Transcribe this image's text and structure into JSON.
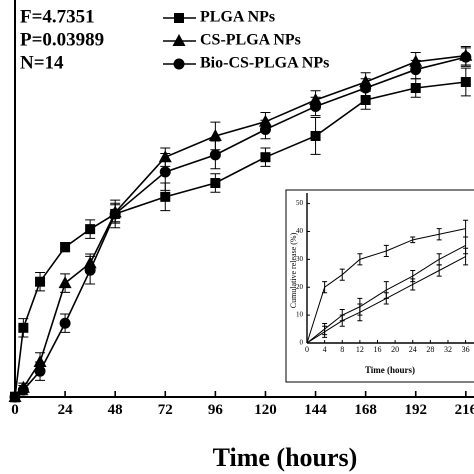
{
  "chart_data": [
    {
      "type": "line",
      "xlabel": "Time (hours)",
      "annotations": [
        "F=4.7351",
        "P=0.03989",
        "N=14"
      ],
      "xlim": [
        0,
        218
      ],
      "ylim": [
        0,
        85
      ],
      "xticks": [
        0,
        24,
        48,
        72,
        96,
        120,
        144,
        168,
        192,
        216
      ],
      "x": [
        0,
        4,
        12,
        24,
        36,
        48,
        72,
        96,
        120,
        144,
        168,
        192,
        216
      ],
      "series": [
        {
          "name": "PLGA NPs",
          "color": "#000000",
          "marker": "square",
          "values": [
            0,
            15,
            25,
            32.5,
            36.4,
            39.7,
            43.4,
            46.4,
            52,
            56.6,
            64.4,
            67,
            68.3
          ],
          "errors": [
            1,
            2,
            2,
            1,
            2,
            3,
            3,
            2,
            2,
            4,
            2,
            2,
            3
          ]
        },
        {
          "name": "CS-PLGA NPs",
          "color": "#000000",
          "marker": "triangle",
          "values": [
            0,
            2,
            7.6,
            24.7,
            29,
            40,
            52,
            56.6,
            59.7,
            64.4,
            68.3,
            72.7,
            74
          ],
          "errors": [
            1,
            1,
            2,
            2,
            2,
            2,
            2,
            3,
            2,
            2,
            2,
            2,
            2
          ]
        },
        {
          "name": "Bio-CS-PLGA NPs",
          "color": "#000000",
          "marker": "circle",
          "values": [
            0,
            1.5,
            5.6,
            16,
            27.5,
            39.7,
            48.8,
            52.5,
            58,
            63,
            67,
            71,
            73.7
          ],
          "errors": [
            1,
            1,
            2,
            2,
            3,
            2,
            4,
            3,
            2,
            2,
            2,
            2,
            2
          ]
        }
      ]
    },
    {
      "type": "line",
      "xlabel": "Time (hours)",
      "ylabel": "Cumulative release (%)",
      "xlim": [
        0,
        37
      ],
      "ylim": [
        0,
        52
      ],
      "xticks": [
        0,
        4,
        8,
        12,
        16,
        20,
        24,
        28,
        32,
        36
      ],
      "yticks": [
        0,
        10,
        20,
        30,
        40,
        50
      ],
      "x": [
        0,
        4,
        8,
        12,
        18,
        24,
        30,
        36
      ],
      "series": [
        {
          "color": "#000000",
          "values": [
            0,
            20,
            24.5,
            30,
            33,
            37,
            39,
            41
          ],
          "errors": [
            0,
            2,
            2,
            2,
            2,
            1,
            2,
            3
          ]
        },
        {
          "color": "#000000",
          "values": [
            0,
            5,
            10,
            13,
            19,
            24,
            30,
            35
          ],
          "errors": [
            0,
            2,
            2,
            3,
            3,
            2,
            2,
            3
          ]
        },
        {
          "color": "#000000",
          "values": [
            0,
            4,
            8,
            11,
            16,
            21,
            26,
            31
          ],
          "errors": [
            0,
            2,
            2,
            3,
            2,
            2,
            2,
            3
          ]
        }
      ]
    }
  ]
}
